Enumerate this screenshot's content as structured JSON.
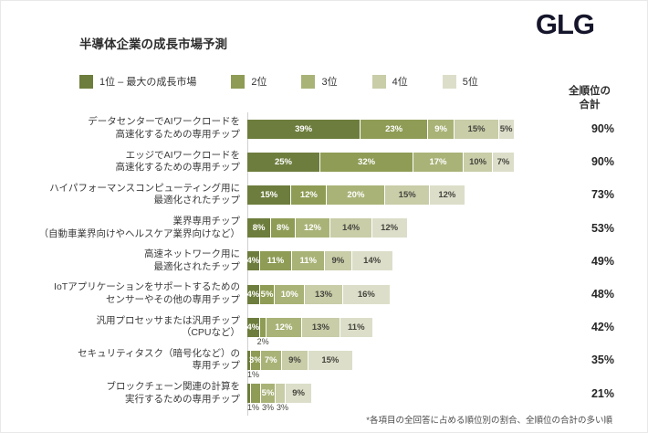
{
  "page": {
    "logo": "GLG",
    "title": "半導体企業の成長市場予測",
    "totals_header_line1": "全順位の",
    "totals_header_line2": "合計",
    "footnote": "*各項目の全回答に占める順位別の割合、全順位の合計の多い順"
  },
  "chart_data": {
    "type": "bar",
    "stacked": true,
    "orientation": "horizontal",
    "unit": "percent",
    "title": "半導体企業の成長市場予測",
    "legend": [
      "1位 – 最大の成長市場",
      "2位",
      "3位",
      "4位",
      "5位"
    ],
    "colors": [
      "#6d7d3d",
      "#8e9c55",
      "#a9b377",
      "#c9cda8",
      "#dcdec9"
    ],
    "inside_text_colors": [
      "#ffffff",
      "#ffffff",
      "#ffffff",
      "#45453e",
      "#45453e"
    ],
    "totals_header": "全順位の合計",
    "footnote": "*各項目の全回答に占める順位別の割合、全順位の合計の多い順",
    "rows": [
      {
        "label": [
          "データセンターでAIワークロードを",
          "高速化するための専用チップ"
        ],
        "values": [
          39,
          23,
          9,
          15,
          5
        ],
        "pos": [
          "in",
          "in",
          "in",
          "in",
          "in"
        ],
        "total": "90%"
      },
      {
        "label": [
          "エッジでAIワークロードを",
          "高速化するための専用チップ"
        ],
        "values": [
          25,
          32,
          17,
          10,
          7
        ],
        "pos": [
          "in",
          "in",
          "in",
          "in",
          "in"
        ],
        "total": "90%"
      },
      {
        "label": [
          "ハイパフォーマンスコンピューティング用に",
          "最適化されたチップ"
        ],
        "values": [
          15,
          12,
          20,
          15,
          12
        ],
        "pos": [
          "in",
          "in",
          "in",
          "in",
          "in"
        ],
        "total": "73%"
      },
      {
        "label": [
          "業界専用チップ",
          "（自動車業界向けやヘルスケア業界向けなど）"
        ],
        "values": [
          8,
          8,
          12,
          14,
          12
        ],
        "pos": [
          "in",
          "in",
          "in",
          "in",
          "in"
        ],
        "total": "53%"
      },
      {
        "label": [
          "高速ネットワーク用に",
          "最適化されたチップ"
        ],
        "values": [
          4,
          11,
          11,
          9,
          14
        ],
        "pos": [
          "in",
          "in",
          "in",
          "in",
          "in"
        ],
        "total": "49%"
      },
      {
        "label": [
          "IoTアプリケーションをサポートするための",
          "センサーやその他の専用チップ"
        ],
        "values": [
          4,
          5,
          10,
          13,
          16
        ],
        "pos": [
          "in",
          "in",
          "in",
          "in",
          "in"
        ],
        "total": "48%"
      },
      {
        "label": [
          "汎用プロセッサまたは汎用チップ",
          "（CPUなど）"
        ],
        "values": [
          4,
          2,
          12,
          13,
          11
        ],
        "pos": [
          "in",
          "below",
          "in",
          "in",
          "in"
        ],
        "total": "42%"
      },
      {
        "label": [
          "セキュリティタスク（暗号化など）の",
          "専用チップ"
        ],
        "values": [
          1,
          3,
          7,
          9,
          15
        ],
        "pos": [
          "below",
          "in",
          "in",
          "in",
          "in"
        ],
        "total": "35%"
      },
      {
        "label": [
          "ブロックチェーン関連の計算を",
          "実行するための専用チップ"
        ],
        "values": [
          1,
          3,
          5,
          3,
          9
        ],
        "pos": [
          "below",
          "below",
          "in",
          "below",
          "in"
        ],
        "total": "21%"
      }
    ]
  }
}
